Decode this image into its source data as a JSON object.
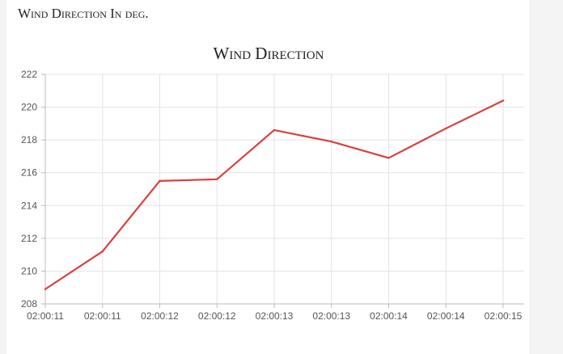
{
  "panel": {
    "label": "Wind Direction In deg."
  },
  "colors": {
    "line": "#d9403e",
    "grid": "#e3e3e3",
    "axis": "#bbbbbb",
    "text": "#555555"
  },
  "chart_data": {
    "type": "line",
    "title": "Wind Direction",
    "xlabel": "",
    "ylabel": "",
    "categories": [
      "02:00:11",
      "02:00:11",
      "02:00:12",
      "02:00:12",
      "02:00:13",
      "02:00:13",
      "02:00:14",
      "02:00:14",
      "02:00:15"
    ],
    "series": [
      {
        "values": [
          208.9,
          211.2,
          215.5,
          215.6,
          218.6,
          217.9,
          216.9,
          218.7,
          220.4
        ]
      }
    ],
    "ylim": [
      208,
      222
    ],
    "yticks": [
      208,
      210,
      212,
      214,
      216,
      218,
      220,
      222
    ],
    "grid": true,
    "legend": "none"
  }
}
